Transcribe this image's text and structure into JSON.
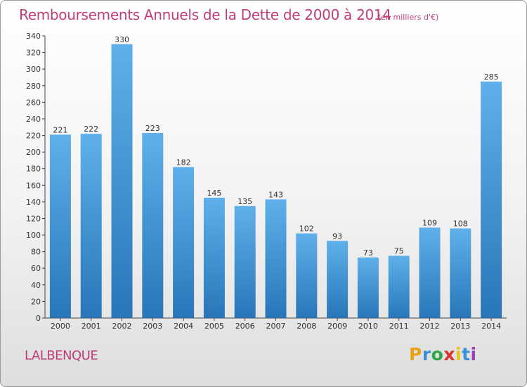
{
  "header": {
    "title": "Remboursements Annuels de la Dette de 2000 à 2014",
    "subtitle": "(en milliers d'€)"
  },
  "footer": {
    "commune": "LALBENQUE",
    "logo_letters": [
      "P",
      "r",
      "o",
      "x",
      "i",
      "t",
      "i"
    ],
    "logo_colors": [
      "#e8a317",
      "#3b8fd6",
      "#2ea84a",
      "#d9342b",
      "#e8c31a",
      "#3b8fd6",
      "#9b3fb5"
    ]
  },
  "colors": {
    "bar_top": "#5fb0ea",
    "bar_bottom": "#2876b8",
    "accent": "#c13c7a"
  },
  "chart_data": {
    "type": "bar",
    "categories": [
      "2000",
      "2001",
      "2002",
      "2003",
      "2004",
      "2005",
      "2006",
      "2007",
      "2008",
      "2009",
      "2010",
      "2011",
      "2012",
      "2013",
      "2014"
    ],
    "values": [
      221,
      222,
      330,
      223,
      182,
      145,
      135,
      143,
      102,
      93,
      73,
      75,
      109,
      108,
      285
    ],
    "title": "Remboursements Annuels de la Dette de 2000 à 2014",
    "ylim": [
      0,
      340
    ],
    "yticks": [
      0,
      20,
      40,
      60,
      80,
      100,
      120,
      140,
      160,
      180,
      200,
      220,
      240,
      260,
      280,
      300,
      320,
      340
    ],
    "grid": false,
    "legend": "none"
  }
}
